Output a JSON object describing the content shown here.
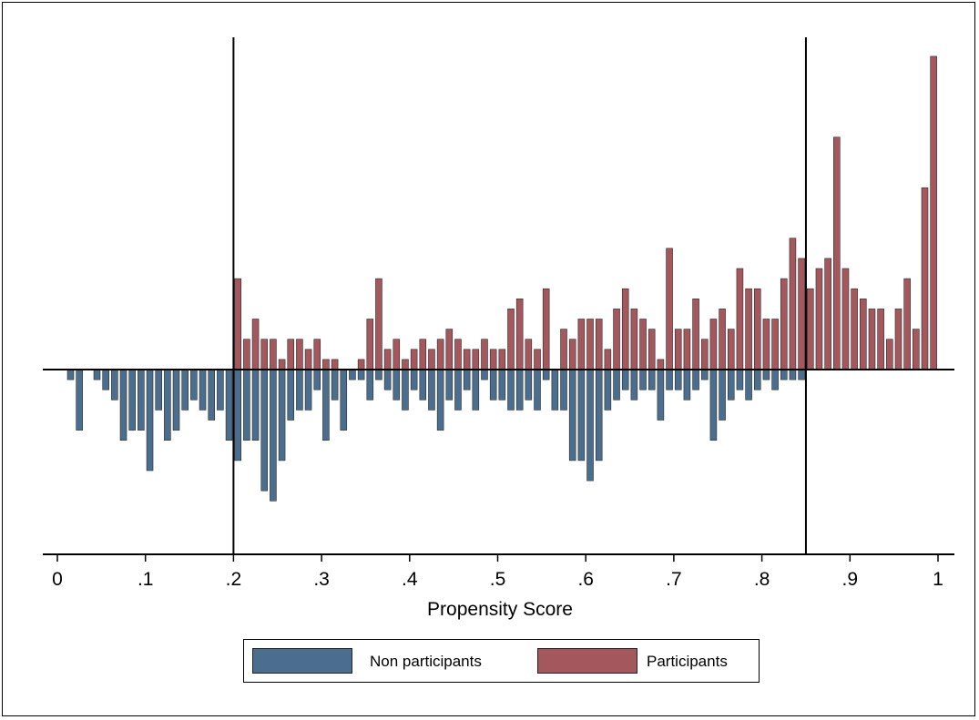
{
  "chart_data": {
    "type": "bar",
    "subtype": "mirrored histogram",
    "title": "",
    "xlabel": "Propensity Score",
    "ylabel": "",
    "xlim": [
      -0.015,
      1.015
    ],
    "x_ticks": [
      "0",
      ".1",
      ".2",
      ".3",
      ".4",
      ".5",
      ".6",
      ".7",
      ".8",
      ".9",
      "1"
    ],
    "x_tick_values": [
      0,
      0.1,
      0.2,
      0.3,
      0.4,
      0.5,
      0.6,
      0.7,
      0.8,
      0.9,
      1
    ],
    "bin_width": 0.01,
    "reference_lines": [
      0.2,
      0.85
    ],
    "grid": false,
    "legend_position": "bottom",
    "y_unit": "frequency (unlabeled)",
    "series": [
      {
        "name": "Non participants",
        "color": "#4b6e8e",
        "direction": "down",
        "x": [
          0.015,
          0.025,
          0.045,
          0.055,
          0.065,
          0.075,
          0.085,
          0.095,
          0.105,
          0.115,
          0.125,
          0.135,
          0.145,
          0.155,
          0.165,
          0.175,
          0.185,
          0.195,
          0.205,
          0.215,
          0.225,
          0.235,
          0.245,
          0.255,
          0.265,
          0.275,
          0.285,
          0.295,
          0.305,
          0.315,
          0.325,
          0.335,
          0.345,
          0.355,
          0.365,
          0.375,
          0.385,
          0.395,
          0.405,
          0.415,
          0.425,
          0.435,
          0.445,
          0.455,
          0.465,
          0.475,
          0.485,
          0.495,
          0.505,
          0.515,
          0.525,
          0.535,
          0.545,
          0.555,
          0.565,
          0.575,
          0.585,
          0.595,
          0.605,
          0.615,
          0.625,
          0.635,
          0.645,
          0.655,
          0.665,
          0.675,
          0.685,
          0.695,
          0.705,
          0.715,
          0.725,
          0.735,
          0.745,
          0.755,
          0.765,
          0.775,
          0.785,
          0.795,
          0.805,
          0.815,
          0.825,
          0.835,
          0.845
        ],
        "values": [
          1,
          6,
          1,
          2,
          3,
          7,
          6,
          6,
          10,
          4,
          7,
          6,
          4,
          3,
          4,
          5,
          4,
          7,
          9,
          7,
          7,
          12,
          13,
          9,
          5,
          4,
          4,
          2,
          7,
          3,
          6,
          1,
          1,
          3,
          1,
          2,
          3,
          4,
          2,
          3,
          4,
          6,
          3,
          4,
          2,
          4,
          1,
          3,
          3,
          4,
          4,
          3,
          4,
          1,
          4,
          4,
          9,
          9,
          11,
          9,
          4,
          3,
          2,
          3,
          2,
          2,
          5,
          2,
          2,
          3,
          2,
          1,
          7,
          5,
          3,
          2,
          3,
          2,
          1,
          2,
          1,
          1,
          1
        ]
      },
      {
        "name": "Participants",
        "color": "#a5575e",
        "direction": "up",
        "x": [
          0.205,
          0.215,
          0.225,
          0.235,
          0.245,
          0.255,
          0.265,
          0.275,
          0.285,
          0.295,
          0.305,
          0.315,
          0.345,
          0.355,
          0.365,
          0.375,
          0.385,
          0.395,
          0.405,
          0.415,
          0.425,
          0.435,
          0.445,
          0.455,
          0.465,
          0.475,
          0.485,
          0.495,
          0.505,
          0.515,
          0.525,
          0.535,
          0.545,
          0.555,
          0.575,
          0.585,
          0.595,
          0.605,
          0.615,
          0.625,
          0.635,
          0.645,
          0.655,
          0.665,
          0.675,
          0.685,
          0.695,
          0.705,
          0.715,
          0.725,
          0.735,
          0.745,
          0.755,
          0.765,
          0.775,
          0.785,
          0.795,
          0.805,
          0.815,
          0.825,
          0.835,
          0.845,
          0.855,
          0.865,
          0.875,
          0.885,
          0.895,
          0.905,
          0.915,
          0.925,
          0.935,
          0.945,
          0.955,
          0.965,
          0.975,
          0.985,
          0.995
        ],
        "values": [
          9,
          3,
          5,
          3,
          3,
          1,
          3,
          3,
          2,
          3,
          1,
          1,
          1,
          5,
          9,
          2,
          3,
          1,
          2,
          3,
          2,
          3,
          4,
          3,
          2,
          2,
          3,
          2,
          2,
          6,
          7,
          3,
          2,
          8,
          4,
          3,
          5,
          5,
          5,
          2,
          6,
          8,
          6,
          5,
          4,
          1,
          12,
          4,
          4,
          7,
          3,
          5,
          6,
          4,
          10,
          8,
          8,
          5,
          5,
          9,
          13,
          11,
          8,
          10,
          11,
          23,
          10,
          8,
          7,
          6,
          6,
          3,
          6,
          9,
          4,
          18,
          31
        ]
      }
    ]
  }
}
